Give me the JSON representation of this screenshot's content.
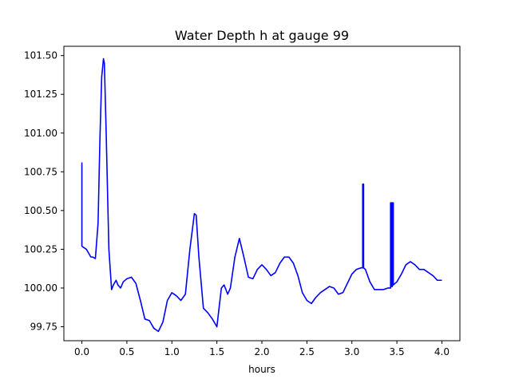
{
  "chart_data": {
    "type": "line",
    "title": "Water Depth h at gauge 99",
    "xlabel": "hours",
    "ylabel": "",
    "xlim": [
      -0.2,
      4.2
    ],
    "ylim": [
      99.66,
      101.56
    ],
    "xticks": [
      0.0,
      0.5,
      1.0,
      1.5,
      2.0,
      2.5,
      3.0,
      3.5,
      4.0
    ],
    "xtick_labels": [
      "0.0",
      "0.5",
      "1.0",
      "1.5",
      "2.0",
      "2.5",
      "3.0",
      "3.5",
      "4.0"
    ],
    "yticks": [
      99.75,
      100.0,
      100.25,
      100.5,
      100.75,
      101.0,
      101.25,
      101.5
    ],
    "ytick_labels": [
      "99.75",
      "100.00",
      "100.25",
      "100.50",
      "100.75",
      "101.00",
      "101.25",
      "101.50"
    ],
    "grid": false,
    "colors": {
      "line": "#0000ff",
      "axes": "#000000",
      "background": "#ffffff"
    },
    "series": [
      {
        "x": [
          0.0,
          0.0,
          0.0,
          0.05,
          0.1,
          0.12,
          0.15,
          0.18,
          0.2,
          0.22,
          0.24,
          0.25,
          0.27,
          0.3,
          0.33,
          0.35,
          0.38,
          0.4,
          0.43,
          0.46,
          0.5,
          0.55,
          0.6,
          0.65,
          0.7,
          0.75,
          0.8,
          0.85,
          0.9,
          0.95,
          1.0,
          1.05,
          1.1,
          1.15,
          1.2,
          1.25,
          1.27,
          1.3,
          1.35,
          1.4,
          1.45,
          1.5,
          1.52,
          1.55,
          1.58,
          1.62,
          1.65,
          1.7,
          1.75,
          1.8,
          1.85,
          1.9,
          1.95,
          2.0,
          2.05,
          2.1,
          2.15,
          2.2,
          2.25,
          2.3,
          2.35,
          2.4,
          2.45,
          2.5,
          2.55,
          2.6,
          2.65,
          2.7,
          2.75,
          2.8,
          2.85,
          2.9,
          2.95,
          3.0,
          3.05,
          3.1,
          3.12,
          3.12,
          3.13,
          3.13,
          3.15,
          3.2,
          3.25,
          3.3,
          3.35,
          3.4,
          3.43,
          3.43,
          3.44,
          3.44,
          3.45,
          3.45,
          3.46,
          3.46,
          3.5,
          3.55,
          3.6,
          3.65,
          3.7,
          3.75,
          3.8,
          3.85,
          3.9,
          3.95,
          4.0
        ],
        "y": [
          100.81,
          100.27,
          100.27,
          100.25,
          100.2,
          100.2,
          100.19,
          100.42,
          100.95,
          101.36,
          101.48,
          101.45,
          101.0,
          100.25,
          99.99,
          100.02,
          100.05,
          100.02,
          100.0,
          100.04,
          100.06,
          100.07,
          100.03,
          99.92,
          99.8,
          99.79,
          99.74,
          99.72,
          99.78,
          99.92,
          99.97,
          99.95,
          99.92,
          99.96,
          100.25,
          100.48,
          100.47,
          100.2,
          99.87,
          99.84,
          99.8,
          99.75,
          99.85,
          100.0,
          100.02,
          99.96,
          100.0,
          100.2,
          100.32,
          100.2,
          100.07,
          100.06,
          100.12,
          100.15,
          100.12,
          100.08,
          100.1,
          100.16,
          100.2,
          100.2,
          100.16,
          100.08,
          99.97,
          99.92,
          99.9,
          99.94,
          99.97,
          99.99,
          100.01,
          100.0,
          99.96,
          99.97,
          100.03,
          100.09,
          100.12,
          100.13,
          100.13,
          100.67,
          100.67,
          100.13,
          100.12,
          100.04,
          99.99,
          99.99,
          99.99,
          100.0,
          100.0,
          100.55,
          100.55,
          100.01,
          100.01,
          100.55,
          100.55,
          100.02,
          100.04,
          100.09,
          100.15,
          100.17,
          100.15,
          100.12,
          100.12,
          100.1,
          100.08,
          100.05,
          100.05
        ]
      }
    ]
  }
}
